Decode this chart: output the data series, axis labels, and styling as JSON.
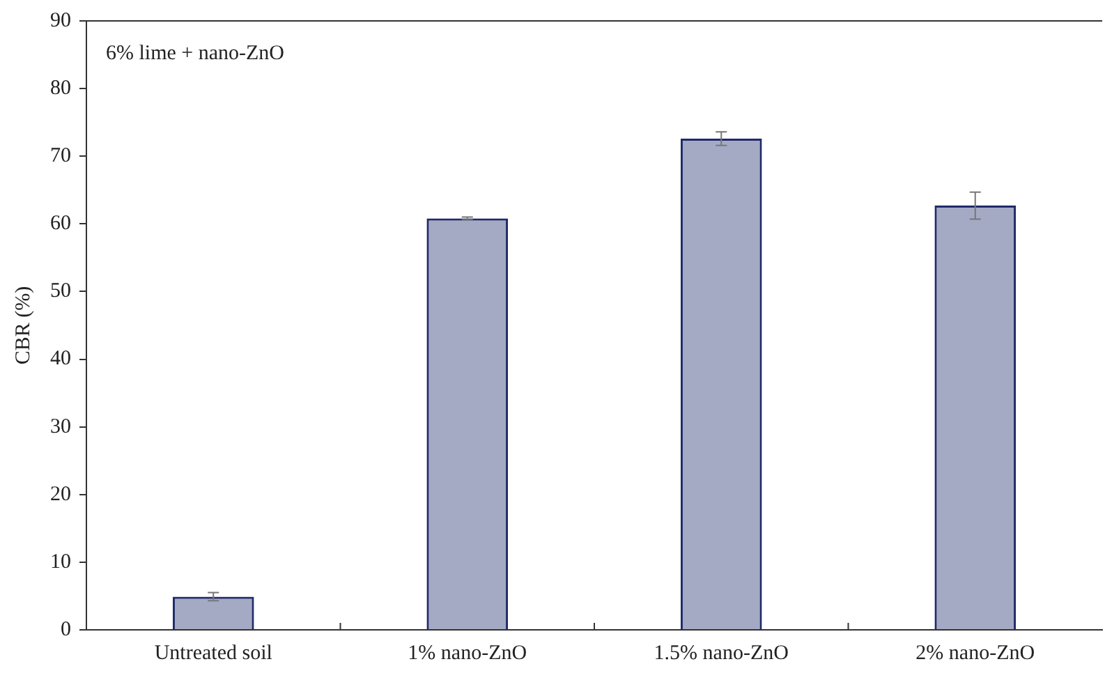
{
  "chart_data": {
    "type": "bar",
    "ylabel": "CBR (%)",
    "annotations": [
      "6% lime + nano-ZnO"
    ],
    "categories": [
      "Untreated soil",
      "1% nano-ZnO",
      "1.5% nano-ZnO",
      "2% nano-ZnO"
    ],
    "values": [
      4.9,
      60.8,
      72.6,
      62.7
    ],
    "errors": [
      0.6,
      0.2,
      1.0,
      2.0
    ],
    "color": "#1f2a6b",
    "ylim": [
      0,
      90
    ],
    "yticks": [
      0,
      10,
      20,
      30,
      40,
      50,
      60,
      70,
      80,
      90
    ],
    "grid": false,
    "legend": false
  }
}
